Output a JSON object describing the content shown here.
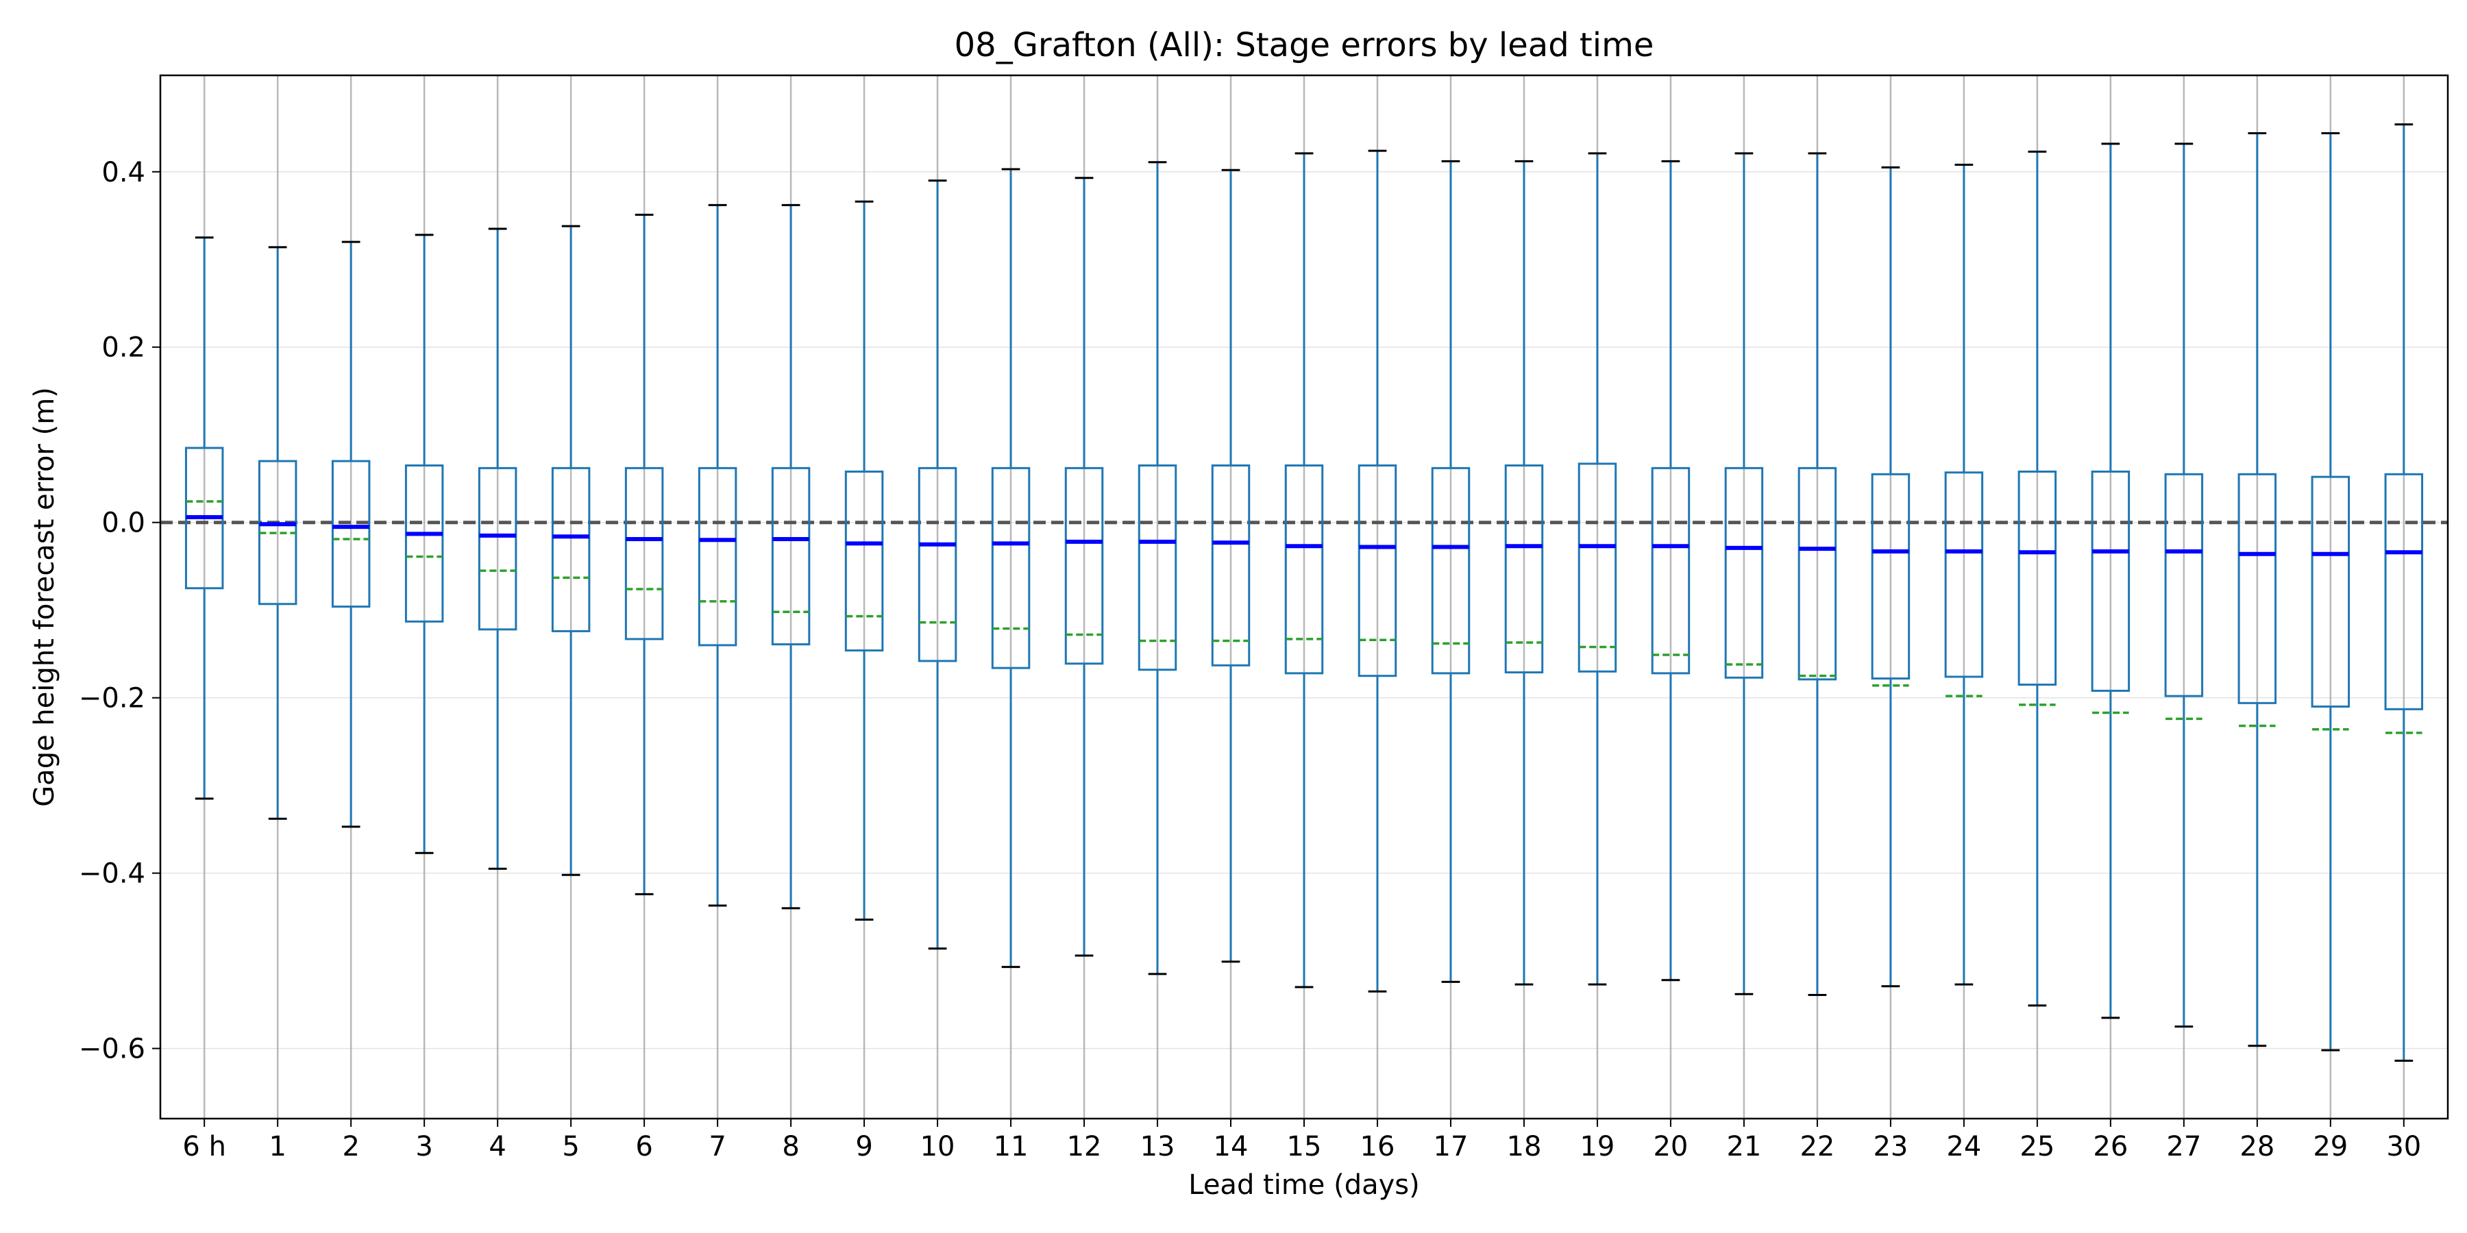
{
  "chart_data": {
    "type": "box",
    "title": "08_Grafton (All): Stage errors by lead time",
    "xlabel": "Lead time (days)",
    "ylabel": "Gage height forecast error (m)",
    "ylim": [
      -0.68,
      0.51
    ],
    "yticks": [
      -0.6,
      -0.4,
      -0.2,
      0.0,
      0.2,
      0.4
    ],
    "ytick_labels": [
      "−0.6",
      "−0.4",
      "−0.2",
      "0.0",
      "0.2",
      "0.4"
    ],
    "grid": true,
    "reference_line": 0.0,
    "colors": {
      "box": "#1f77b4",
      "median": "#0000ff",
      "mean": "#2ca02c",
      "cap": "#000000",
      "reference": "#555555",
      "grid": "#b0b0b0"
    },
    "categories": [
      "6 h",
      "1",
      "2",
      "3",
      "4",
      "5",
      "6",
      "7",
      "8",
      "9",
      "10",
      "11",
      "12",
      "13",
      "14",
      "15",
      "16",
      "17",
      "18",
      "19",
      "20",
      "21",
      "22",
      "23",
      "24",
      "25",
      "26",
      "27",
      "28",
      "29",
      "30"
    ],
    "whisker_low": [
      -0.315,
      -0.338,
      -0.347,
      -0.377,
      -0.395,
      -0.402,
      -0.424,
      -0.437,
      -0.44,
      -0.453,
      -0.486,
      -0.507,
      -0.494,
      -0.515,
      -0.501,
      -0.53,
      -0.535,
      -0.524,
      -0.527,
      -0.527,
      -0.522,
      -0.538,
      -0.539,
      -0.529,
      -0.527,
      -0.551,
      -0.565,
      -0.575,
      -0.597,
      -0.602,
      -0.614
    ],
    "q1": [
      -0.075,
      -0.093,
      -0.096,
      -0.113,
      -0.122,
      -0.124,
      -0.133,
      -0.14,
      -0.139,
      -0.146,
      -0.158,
      -0.166,
      -0.161,
      -0.168,
      -0.163,
      -0.172,
      -0.175,
      -0.172,
      -0.171,
      -0.17,
      -0.172,
      -0.177,
      -0.179,
      -0.178,
      -0.176,
      -0.185,
      -0.192,
      -0.198,
      -0.206,
      -0.21,
      -0.213
    ],
    "median": [
      0.006,
      -0.002,
      -0.005,
      -0.013,
      -0.015,
      -0.016,
      -0.019,
      -0.02,
      -0.019,
      -0.024,
      -0.025,
      -0.024,
      -0.022,
      -0.022,
      -0.023,
      -0.027,
      -0.028,
      -0.028,
      -0.027,
      -0.027,
      -0.027,
      -0.029,
      -0.03,
      -0.033,
      -0.033,
      -0.034,
      -0.033,
      -0.033,
      -0.036,
      -0.036,
      -0.034
    ],
    "q3": [
      0.085,
      0.07,
      0.07,
      0.065,
      0.062,
      0.062,
      0.062,
      0.062,
      0.062,
      0.058,
      0.062,
      0.062,
      0.062,
      0.065,
      0.065,
      0.065,
      0.065,
      0.062,
      0.065,
      0.067,
      0.062,
      0.062,
      0.062,
      0.055,
      0.057,
      0.058,
      0.058,
      0.055,
      0.055,
      0.052,
      0.055
    ],
    "whisker_high": [
      0.325,
      0.314,
      0.32,
      0.328,
      0.335,
      0.338,
      0.351,
      0.362,
      0.362,
      0.366,
      0.39,
      0.403,
      0.393,
      0.411,
      0.402,
      0.421,
      0.424,
      0.412,
      0.412,
      0.421,
      0.412,
      0.421,
      0.421,
      0.405,
      0.408,
      0.423,
      0.432,
      0.432,
      0.444,
      0.444,
      0.454
    ],
    "mean": [
      0.024,
      -0.012,
      -0.019,
      -0.039,
      -0.055,
      -0.063,
      -0.076,
      -0.09,
      -0.102,
      -0.107,
      -0.114,
      -0.121,
      -0.128,
      -0.135,
      -0.135,
      -0.133,
      -0.134,
      -0.138,
      -0.137,
      -0.142,
      -0.151,
      -0.162,
      -0.175,
      -0.186,
      -0.198,
      -0.208,
      -0.217,
      -0.224,
      -0.232,
      -0.236,
      -0.24
    ]
  }
}
